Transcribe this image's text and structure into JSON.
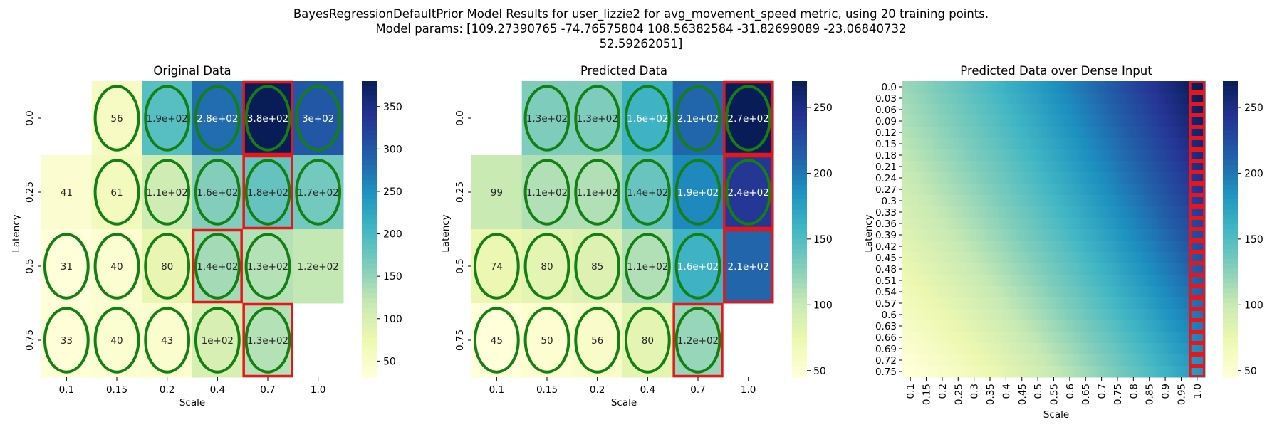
{
  "figure": {
    "suptitle": [
      "BayesRegressionDefaultPrior Model Results for user_lizzie2 for avg_movement_speed metric, using 20 training points.",
      "Model params: [109.27390765 -74.76575804 108.56382584 -31.82699089 -23.06840732",
      "52.59262051]"
    ]
  },
  "chart_data": [
    {
      "type": "heatmap",
      "title": "Original Data",
      "xlabel": "Scale",
      "ylabel": "Latency",
      "x_ticks": [
        "0.1",
        "0.15",
        "0.2",
        "0.4",
        "0.7",
        "1.0"
      ],
      "y_ticks": [
        "0.0",
        "0.25",
        "0.5",
        "0.75"
      ],
      "values": [
        [
          null,
          56,
          190,
          280,
          380,
          300
        ],
        [
          41,
          61,
          110,
          160,
          180,
          170
        ],
        [
          31,
          40,
          80,
          140,
          130,
          120
        ],
        [
          33,
          40,
          43,
          100,
          130,
          null
        ]
      ],
      "labels": [
        [
          "",
          "56",
          "1.9e+02",
          "2.8e+02",
          "3.8e+02",
          "3e+02"
        ],
        [
          "41",
          "61",
          "1.1e+02",
          "1.6e+02",
          "1.8e+02",
          "1.7e+02"
        ],
        [
          "31",
          "40",
          "80",
          "1.4e+02",
          "1.3e+02",
          "1.2e+02"
        ],
        [
          "33",
          "40",
          "43",
          "1e+02",
          "1.3e+02",
          ""
        ]
      ],
      "green_ellipses": [
        [
          false,
          true,
          true,
          true,
          true,
          true
        ],
        [
          false,
          true,
          true,
          true,
          true,
          true
        ],
        [
          true,
          true,
          true,
          true,
          true,
          false
        ],
        [
          true,
          true,
          true,
          true,
          true,
          false
        ]
      ],
      "red_boxes": [
        [
          0,
          4
        ],
        [
          1,
          4
        ],
        [
          2,
          3
        ],
        [
          3,
          4
        ]
      ],
      "colorbar": {
        "min": 31,
        "max": 380,
        "ticks": [
          "50",
          "100",
          "150",
          "200",
          "250",
          "300",
          "350"
        ]
      },
      "colormap": "YlGnBu"
    },
    {
      "type": "heatmap",
      "title": "Predicted Data",
      "xlabel": "Scale",
      "ylabel": "Latency",
      "x_ticks": [
        "0.1",
        "0.15",
        "0.2",
        "0.4",
        "0.7",
        "1.0"
      ],
      "y_ticks": [
        "0.0",
        "0.25",
        "0.5",
        "0.75"
      ],
      "values": [
        [
          null,
          130,
          130,
          160,
          210,
          270
        ],
        [
          99,
          110,
          110,
          140,
          190,
          240
        ],
        [
          74,
          80,
          85,
          110,
          160,
          210
        ],
        [
          45,
          50,
          56,
          80,
          120,
          null
        ]
      ],
      "labels": [
        [
          "",
          "1.3e+02",
          "1.3e+02",
          "1.6e+02",
          "2.1e+02",
          "2.7e+02"
        ],
        [
          "99",
          "1.1e+02",
          "1.1e+02",
          "1.4e+02",
          "1.9e+02",
          "2.4e+02"
        ],
        [
          "74",
          "80",
          "85",
          "1.1e+02",
          "1.6e+02",
          "2.1e+02"
        ],
        [
          "45",
          "50",
          "56",
          "80",
          "1.2e+02",
          ""
        ]
      ],
      "green_ellipses": [
        [
          false,
          true,
          true,
          true,
          true,
          true
        ],
        [
          false,
          true,
          true,
          true,
          true,
          true
        ],
        [
          true,
          true,
          true,
          true,
          true,
          false
        ],
        [
          true,
          true,
          true,
          true,
          true,
          false
        ]
      ],
      "red_boxes": [
        [
          0,
          5
        ],
        [
          1,
          5
        ],
        [
          2,
          5
        ],
        [
          3,
          4
        ]
      ],
      "colorbar": {
        "min": 45,
        "max": 270,
        "ticks": [
          "50",
          "100",
          "150",
          "200",
          "250"
        ]
      },
      "colormap": "YlGnBu"
    },
    {
      "type": "heatmap",
      "title": "Predicted Data over Dense Input",
      "xlabel": "Scale",
      "ylabel": "Latency",
      "x_ticks": [
        "0.1",
        "0.15",
        "0.2",
        "0.25",
        "0.3",
        "0.35",
        "0.4",
        "0.45",
        "0.5",
        "0.55",
        "0.6",
        "0.65",
        "0.7",
        "0.75",
        "0.8",
        "0.85",
        "0.9",
        "0.95",
        "1.0"
      ],
      "y_ticks": [
        "0.0",
        "0.03",
        "0.06",
        "0.09",
        "0.12",
        "0.15",
        "0.18",
        "0.21",
        "0.24",
        "0.27",
        "0.3",
        "0.33",
        "0.36",
        "0.39",
        "0.42",
        "0.45",
        "0.48",
        "0.51",
        "0.54",
        "0.57",
        "0.6",
        "0.63",
        "0.66",
        "0.69",
        "0.72",
        "0.75"
      ],
      "surface": "z = 109.27 - 74.77*latency + 108.56*scale - 31.83*latency^2 - 23.07*latency*scale + 52.59*scale^2 (approx. range 45 to 270)",
      "red_column": "1.0",
      "colorbar": {
        "min": 45,
        "max": 270,
        "ticks": [
          "50",
          "100",
          "150",
          "200",
          "250"
        ]
      },
      "colormap": "YlGnBu"
    }
  ]
}
